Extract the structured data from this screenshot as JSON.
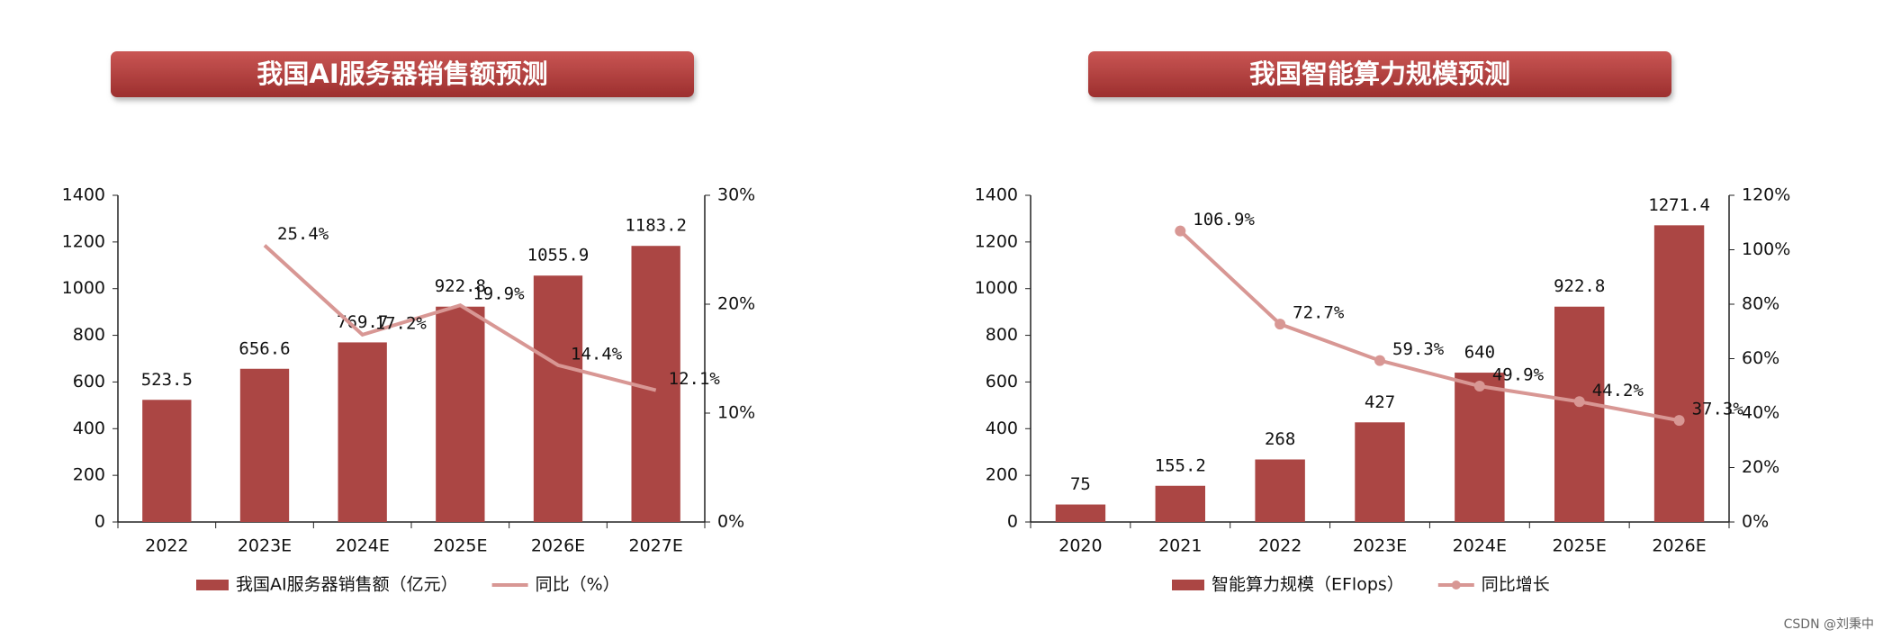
{
  "chart_data": [
    {
      "type": "bar-line",
      "title": "我国AI服务器销售额预测",
      "categories": [
        "2022",
        "2023E",
        "2024E",
        "2025E",
        "2026E",
        "2027E"
      ],
      "series": [
        {
          "name": "我国AI服务器销售额（亿元）",
          "color": "#ab4644",
          "values": [
            523.5,
            656.6,
            769.7,
            922.8,
            1055.9,
            1183.2
          ]
        },
        {
          "name": "同比（%）",
          "color": "#d89794",
          "axis": "y2",
          "marker": false,
          "values": [
            null,
            25.4,
            17.2,
            19.9,
            14.4,
            12.1
          ],
          "value_labels": [
            null,
            "25.4%",
            "17.2%",
            "19.9%",
            "14.4%",
            "12.1%"
          ]
        }
      ],
      "ylim": [
        0,
        1400
      ],
      "yticks": [
        0,
        200,
        400,
        600,
        800,
        1000,
        1200,
        1400
      ],
      "y2lim": [
        0,
        30
      ],
      "y2ticks": [
        {
          "value": 0,
          "label": "0%"
        },
        {
          "value": 10,
          "label": "10%"
        },
        {
          "value": 20,
          "label": "20%"
        },
        {
          "value": 30,
          "label": "30%"
        }
      ]
    },
    {
      "type": "bar-line",
      "title": "我国智能算力规模预测",
      "categories": [
        "2020",
        "2021",
        "2022",
        "2023E",
        "2024E",
        "2025E",
        "2026E"
      ],
      "series": [
        {
          "name": "智能算力规模（EFlops）",
          "color": "#ab4644",
          "values": [
            75,
            155.2,
            268,
            427,
            640,
            922.8,
            1271.4
          ]
        },
        {
          "name": "同比增长",
          "color": "#d89794",
          "axis": "y2",
          "marker": true,
          "values": [
            null,
            106.9,
            72.7,
            59.3,
            49.9,
            44.2,
            37.3
          ],
          "value_labels": [
            null,
            "106.9%",
            "72.7%",
            "59.3%",
            "49.9%",
            "44.2%",
            "37.3%"
          ]
        }
      ],
      "ylim": [
        0,
        1400
      ],
      "yticks": [
        0,
        200,
        400,
        600,
        800,
        1000,
        1200,
        1400
      ],
      "y2lim": [
        0,
        120
      ],
      "y2ticks": [
        {
          "value": 0,
          "label": "0%"
        },
        {
          "value": 20,
          "label": "20%"
        },
        {
          "value": 40,
          "label": "40%"
        },
        {
          "value": 60,
          "label": "60%"
        },
        {
          "value": 80,
          "label": "80%"
        },
        {
          "value": 100,
          "label": "100%"
        },
        {
          "value": 120,
          "label": "120%"
        }
      ]
    }
  ],
  "watermark": "CSDN @刘秉中"
}
